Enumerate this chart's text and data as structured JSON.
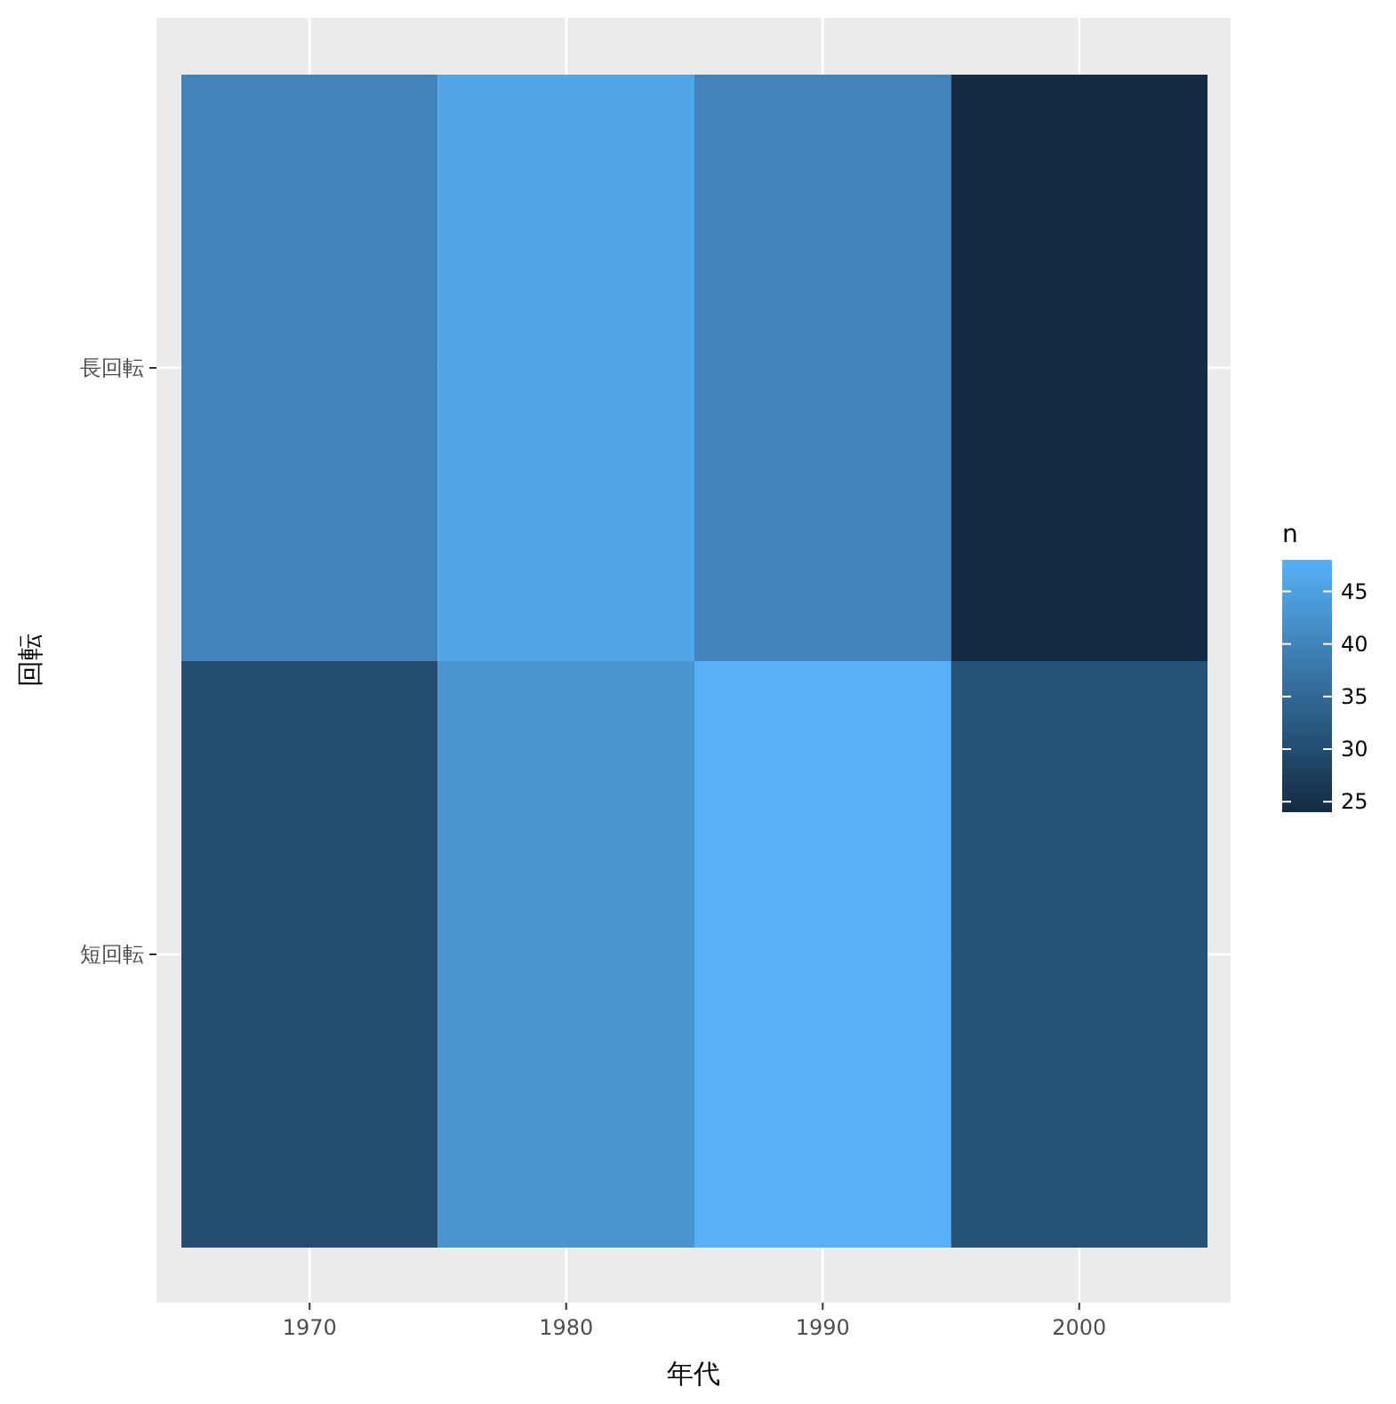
{
  "chart_data": {
    "type": "heatmap",
    "xlabel": "年代",
    "ylabel": "回転",
    "clabel": "n",
    "categories": [
      "1970",
      "1980",
      "1990",
      "2000"
    ],
    "y_categories": [
      "長回転",
      "短回転"
    ],
    "cells": [
      [
        40,
        46,
        40,
        24
      ],
      [
        30,
        43,
        48,
        31
      ]
    ],
    "clim": [
      24,
      48
    ],
    "cticks": [
      25,
      30,
      35,
      40,
      45
    ],
    "colors": [
      "#132b43",
      "#56b1f7"
    ],
    "grid": true
  }
}
